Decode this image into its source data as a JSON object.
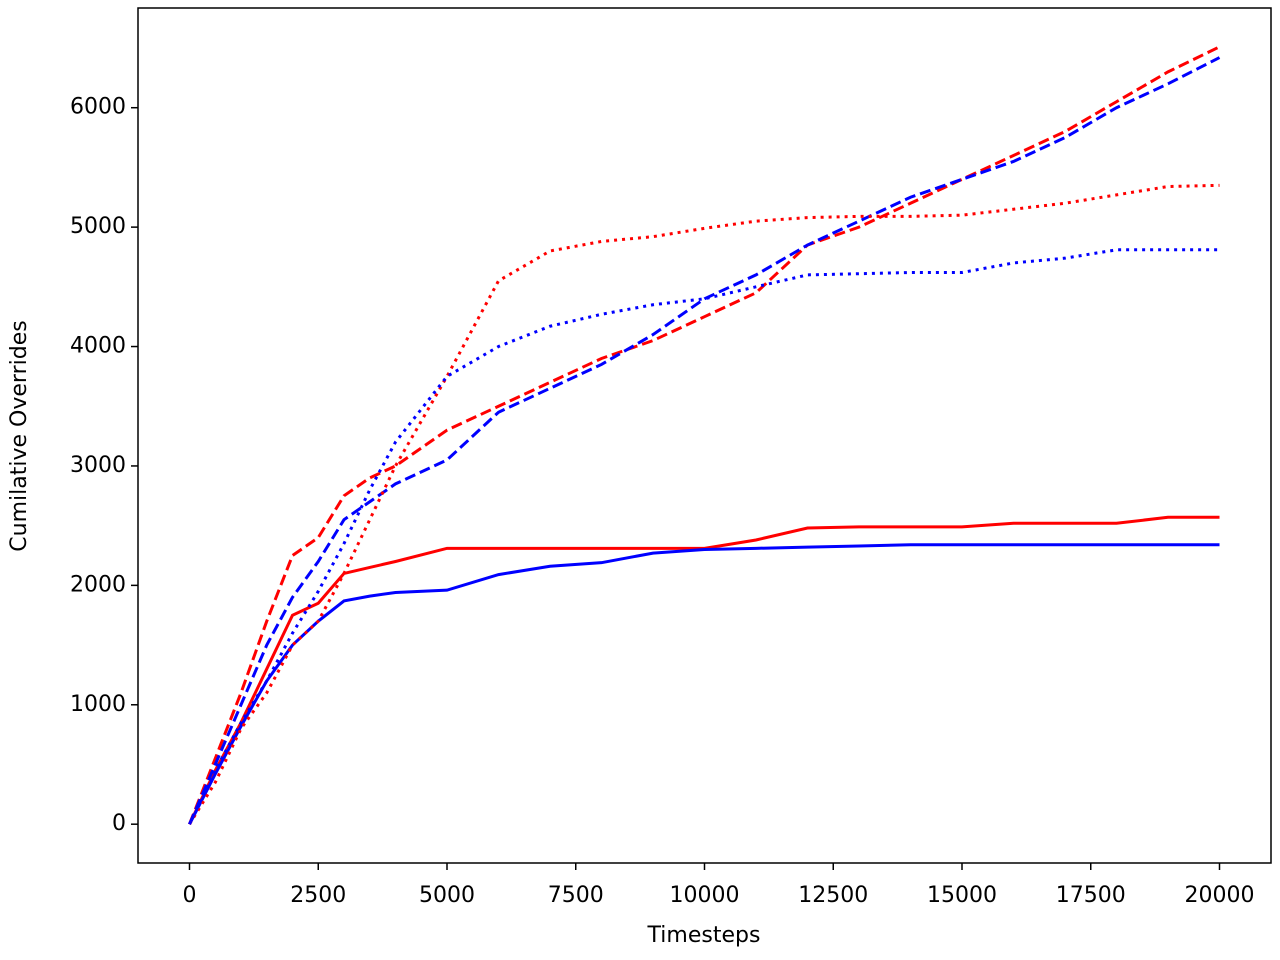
{
  "chart_data": {
    "type": "line",
    "xlabel": "Timesteps",
    "ylabel": "Cumilative Overrides",
    "x": [
      0,
      500,
      1000,
      1500,
      2000,
      2500,
      3000,
      3500,
      4000,
      5000,
      6000,
      7000,
      8000,
      9000,
      10000,
      11000,
      12000,
      13000,
      14000,
      15000,
      16000,
      17000,
      18000,
      19000,
      20000
    ],
    "series": [
      {
        "color": "#ff0000",
        "linestyle": "solid",
        "values": [
          0,
          450,
          850,
          1300,
          1750,
          1850,
          2100,
          2150,
          2200,
          2310,
          2310,
          2310,
          2310,
          2310,
          2310,
          2380,
          2480,
          2490,
          2490,
          2490,
          2520,
          2520,
          2520,
          2570,
          2570
        ]
      },
      {
        "color": "#0000ff",
        "linestyle": "solid",
        "values": [
          0,
          420,
          820,
          1200,
          1500,
          1700,
          1870,
          1910,
          1940,
          1960,
          2090,
          2160,
          2190,
          2270,
          2300,
          2310,
          2320,
          2330,
          2340,
          2340,
          2340,
          2340,
          2340,
          2340,
          2340
        ]
      },
      {
        "color": "#ff0000",
        "linestyle": "dashed",
        "values": [
          0,
          550,
          1100,
          1700,
          2250,
          2400,
          2750,
          2900,
          3000,
          3300,
          3500,
          3700,
          3900,
          4050,
          4250,
          4450,
          4850,
          5000,
          5200,
          5400,
          5600,
          5800,
          6050,
          6300,
          6510
        ]
      },
      {
        "color": "#0000ff",
        "linestyle": "dashed",
        "values": [
          0,
          500,
          1000,
          1500,
          1900,
          2200,
          2550,
          2700,
          2850,
          3050,
          3450,
          3650,
          3850,
          4100,
          4400,
          4600,
          4850,
          5050,
          5250,
          5400,
          5550,
          5750,
          6000,
          6200,
          6420
        ]
      },
      {
        "color": "#ff0000",
        "linestyle": "dotted",
        "values": [
          0,
          350,
          800,
          1100,
          1500,
          1700,
          2100,
          2550,
          3000,
          3750,
          4550,
          4800,
          4880,
          4920,
          4990,
          5050,
          5080,
          5090,
          5090,
          5100,
          5150,
          5200,
          5270,
          5340,
          5350
        ]
      },
      {
        "color": "#0000ff",
        "linestyle": "dotted",
        "values": [
          0,
          450,
          850,
          1200,
          1600,
          1950,
          2350,
          2800,
          3200,
          3750,
          4000,
          4170,
          4270,
          4350,
          4400,
          4500,
          4600,
          4610,
          4620,
          4620,
          4700,
          4740,
          4810,
          4810,
          4810
        ]
      }
    ],
    "xlim": [
      -1000,
      21000
    ],
    "ylim": [
      -325,
      6835
    ],
    "xticks": [
      0,
      2500,
      5000,
      7500,
      10000,
      12500,
      15000,
      17500,
      20000
    ],
    "yticks": [
      0,
      1000,
      2000,
      3000,
      4000,
      5000,
      6000
    ]
  }
}
